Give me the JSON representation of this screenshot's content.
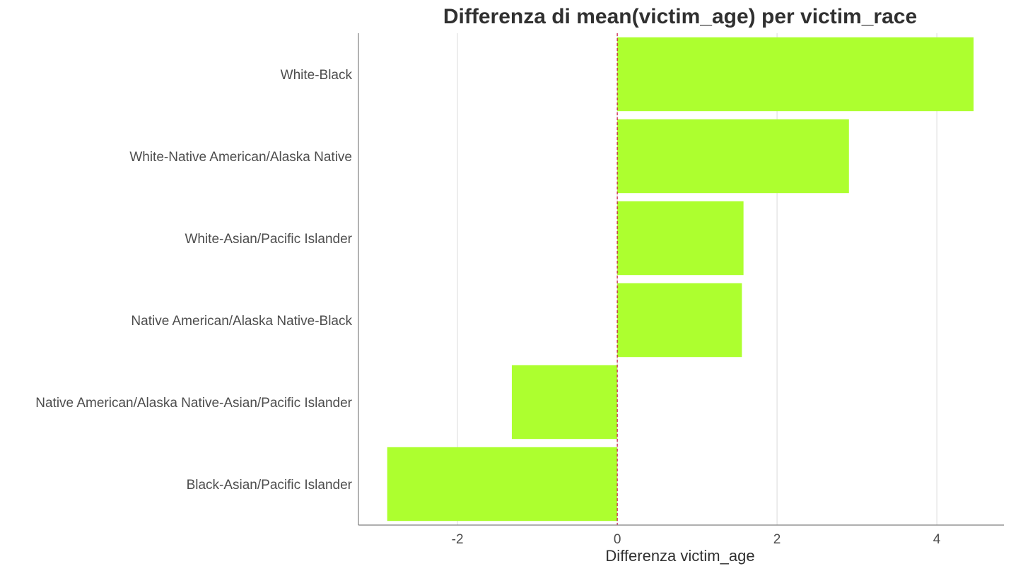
{
  "chart_data": {
    "type": "bar",
    "orientation": "horizontal",
    "title": "Differenza di mean(victim_age) per victim_race",
    "xlabel": "Differenza victim_age",
    "ylabel": "",
    "categories": [
      "White-Black",
      "White-Native American/Alaska Native",
      "White-Asian/Pacific Islander",
      "Native American/Alaska Native-Black",
      "Native American/Alaska Native-Asian/Pacific Islander",
      "Black-Asian/Pacific Islander"
    ],
    "values": [
      4.46,
      2.9,
      1.58,
      1.56,
      -1.32,
      -2.88
    ],
    "xlim": [
      -3.24,
      4.84
    ],
    "xticks": [
      -2,
      0,
      2,
      4
    ],
    "xtick_labels": [
      "-2",
      "0",
      "2",
      "4"
    ],
    "reference_line": {
      "x": 0,
      "style": "dashed",
      "color": "#c8103e"
    },
    "grid": {
      "vertical": true,
      "horizontal": false
    },
    "legend": "none",
    "colors": {
      "bar": "#adff2f",
      "grid": "#dcdcdc",
      "axis": "#7f7f7f"
    }
  }
}
